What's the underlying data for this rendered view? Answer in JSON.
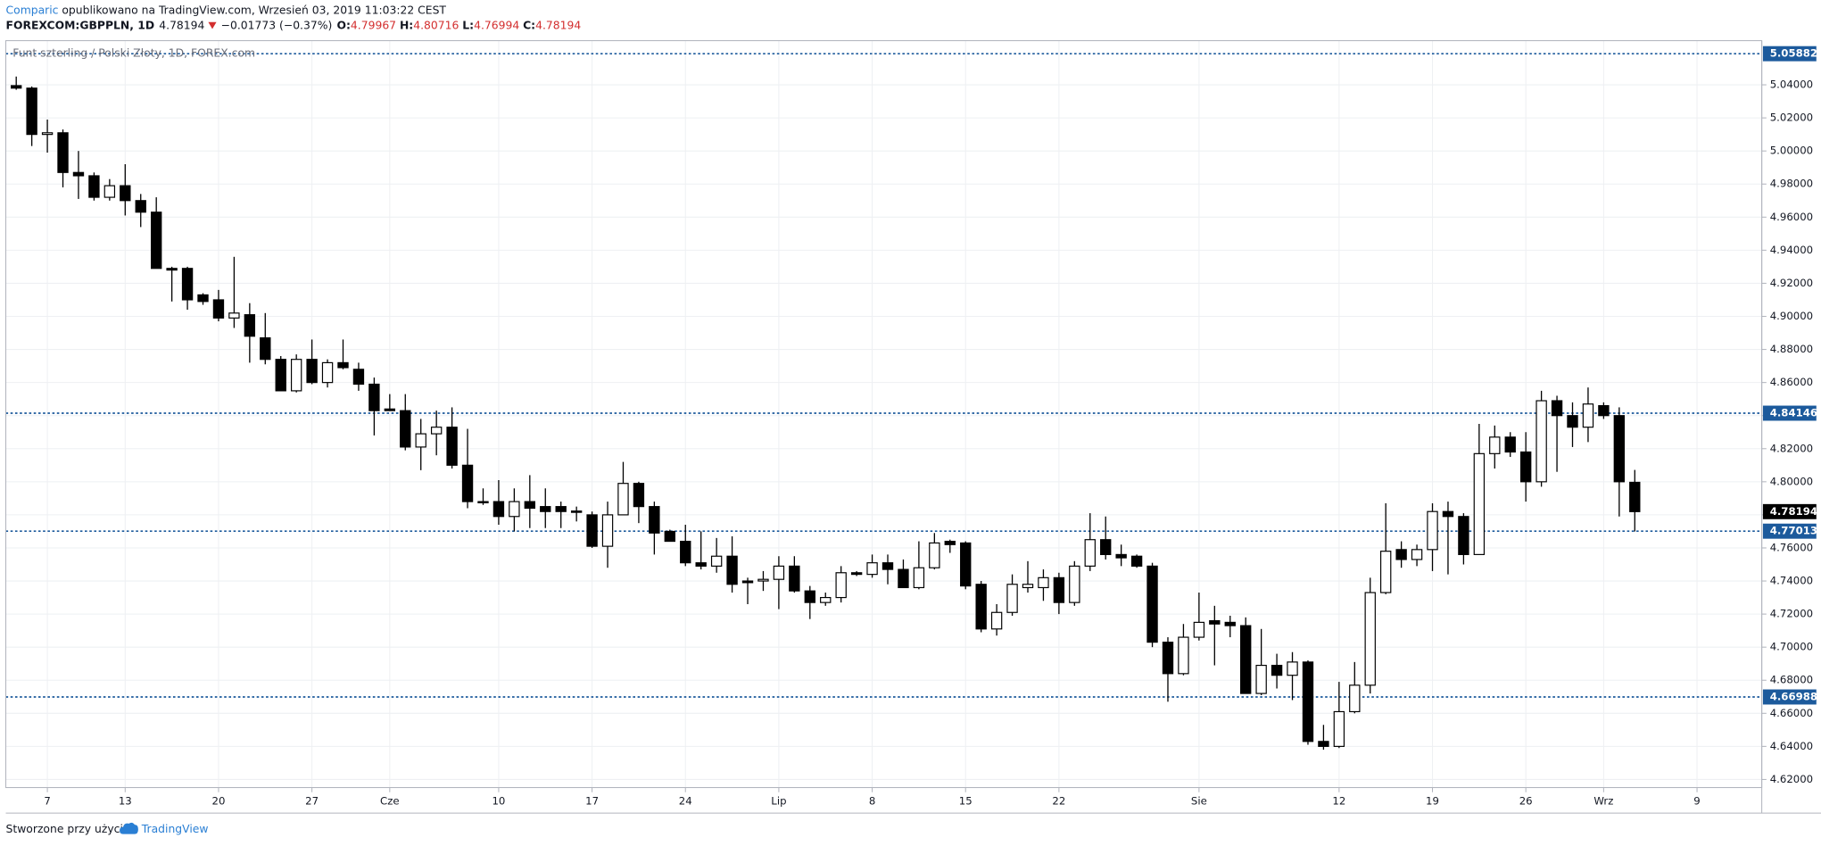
{
  "header": {
    "publisher": "Comparic",
    "published": "opublikowano na TradingView.com, Wrzesień 03, 2019 11:03:22 CEST",
    "symbol": "FOREXCOM:GBPPLN, 1D",
    "change": "−0.01773 (−0.37%)",
    "o": "O:",
    "h": "H:",
    "l": "L:",
    "c": "C:"
  },
  "chart_data": {
    "type": "candlestick",
    "title": "Funt szterling / Polski Złoty, 1D, FOREX.com",
    "up_color": "#ffffff",
    "down_color": "#000000",
    "outline_color": "#000000",
    "level_color": "#1c5a9c",
    "grid": true,
    "open": [
      5.0395,
      5.038,
      5.01,
      5.011,
      4.987,
      4.985,
      4.972,
      4.979,
      4.97,
      4.963,
      4.929,
      4.929,
      4.913,
      4.91,
      4.899,
      4.901,
      4.887,
      4.874,
      4.855,
      4.874,
      4.86,
      4.872,
      4.868,
      4.859,
      4.844,
      4.843,
      4.821,
      4.829,
      4.833,
      4.81,
      4.788,
      4.788,
      4.779,
      4.788,
      4.785,
      4.785,
      4.7823,
      4.78,
      4.761,
      4.78,
      4.799,
      4.785,
      4.77,
      4.764,
      4.751,
      4.749,
      4.755,
      4.74,
      4.74,
      4.741,
      4.749,
      4.734,
      4.727,
      4.73,
      4.745,
      4.744,
      4.751,
      4.747,
      4.736,
      4.748,
      4.764,
      4.763,
      4.738,
      4.711,
      4.721,
      4.736,
      4.736,
      4.742,
      4.727,
      4.749,
      4.765,
      4.756,
      4.755,
      4.749,
      4.703,
      4.684,
      4.706,
      4.716,
      4.715,
      4.713,
      4.672,
      4.689,
      4.683,
      4.691,
      4.643,
      4.64,
      4.661,
      4.677,
      4.733,
      4.759,
      4.753,
      4.759,
      4.782,
      4.779,
      4.756,
      4.817,
      4.827,
      4.818,
      4.8,
      4.849,
      4.84,
      4.833,
      4.846,
      4.84,
      4.79967
    ],
    "high": [
      5.045,
      5.039,
      5.019,
      5.013,
      5.0,
      4.987,
      4.983,
      4.992,
      4.974,
      4.972,
      4.93,
      4.93,
      4.914,
      4.916,
      4.936,
      4.908,
      4.902,
      4.876,
      4.877,
      4.886,
      4.874,
      4.886,
      4.872,
      4.863,
      4.853,
      4.853,
      4.838,
      4.843,
      4.845,
      4.832,
      4.796,
      4.801,
      4.796,
      4.804,
      4.796,
      4.788,
      4.785,
      4.782,
      4.788,
      4.812,
      4.8,
      4.788,
      4.771,
      4.774,
      4.77,
      4.766,
      4.767,
      4.742,
      4.746,
      4.755,
      4.755,
      4.737,
      4.733,
      4.749,
      4.746,
      4.756,
      4.756,
      4.753,
      4.764,
      4.769,
      4.765,
      4.764,
      4.74,
      4.726,
      4.744,
      4.752,
      4.747,
      4.745,
      4.752,
      4.781,
      4.779,
      4.762,
      4.756,
      4.751,
      4.706,
      4.714,
      4.733,
      4.725,
      4.719,
      4.718,
      4.711,
      4.696,
      4.697,
      4.692,
      4.653,
      4.679,
      4.691,
      4.742,
      4.787,
      4.764,
      4.762,
      4.787,
      4.788,
      4.781,
      4.835,
      4.834,
      4.83,
      4.83,
      4.855,
      4.852,
      4.848,
      4.857,
      4.848,
      4.845,
      4.80716
    ],
    "low": [
      5.037,
      5.003,
      4.999,
      4.978,
      4.971,
      4.97,
      4.97,
      4.961,
      4.954,
      4.929,
      4.909,
      4.904,
      4.907,
      4.897,
      4.893,
      4.872,
      4.871,
      4.855,
      4.854,
      4.859,
      4.857,
      4.868,
      4.855,
      4.828,
      4.843,
      4.819,
      4.807,
      4.816,
      4.808,
      4.784,
      4.786,
      4.774,
      4.77,
      4.772,
      4.772,
      4.772,
      4.776,
      4.76,
      4.748,
      4.78,
      4.775,
      4.756,
      4.764,
      4.749,
      4.747,
      4.745,
      4.733,
      4.726,
      4.734,
      4.723,
      4.733,
      4.717,
      4.725,
      4.727,
      4.743,
      4.742,
      4.738,
      4.736,
      4.735,
      4.747,
      4.757,
      4.735,
      4.709,
      4.707,
      4.719,
      4.733,
      4.728,
      4.72,
      4.725,
      4.746,
      4.753,
      4.749,
      4.748,
      4.7,
      4.667,
      4.683,
      4.704,
      4.689,
      4.706,
      4.672,
      4.671,
      4.675,
      4.668,
      4.641,
      4.638,
      4.639,
      4.66,
      4.672,
      4.732,
      4.748,
      4.749,
      4.746,
      4.744,
      4.75,
      4.756,
      4.808,
      4.815,
      4.788,
      4.797,
      4.806,
      4.821,
      4.824,
      4.838,
      4.779,
      4.76994
    ],
    "close": [
      5.038,
      5.01,
      5.011,
      4.987,
      4.985,
      4.972,
      4.979,
      4.97,
      4.963,
      4.929,
      4.928,
      4.91,
      4.909,
      4.899,
      4.902,
      4.888,
      4.874,
      4.855,
      4.874,
      4.86,
      4.872,
      4.869,
      4.859,
      4.843,
      4.843,
      4.821,
      4.829,
      4.833,
      4.81,
      4.788,
      4.7878,
      4.779,
      4.788,
      4.784,
      4.782,
      4.782,
      4.7815,
      4.761,
      4.78,
      4.799,
      4.785,
      4.769,
      4.764,
      4.751,
      4.749,
      4.755,
      4.738,
      4.739,
      4.741,
      4.749,
      4.734,
      4.727,
      4.73,
      4.745,
      4.744,
      4.751,
      4.747,
      4.736,
      4.748,
      4.763,
      4.762,
      4.737,
      4.711,
      4.721,
      4.738,
      4.738,
      4.742,
      4.727,
      4.749,
      4.765,
      4.756,
      4.754,
      4.749,
      4.703,
      4.684,
      4.706,
      4.715,
      4.714,
      4.713,
      4.672,
      4.689,
      4.683,
      4.691,
      4.643,
      4.64,
      4.661,
      4.677,
      4.733,
      4.758,
      4.753,
      4.759,
      4.782,
      4.779,
      4.756,
      4.817,
      4.827,
      4.818,
      4.8,
      4.849,
      4.84,
      4.833,
      4.847,
      4.84,
      4.8,
      4.78194
    ],
    "levels": [
      5.05882,
      4.84146,
      4.77013,
      4.66988
    ],
    "xlim": [
      -0.67,
      112.16
    ],
    "xticks": [
      {
        "value": 2,
        "label": "7"
      },
      {
        "value": 7,
        "label": "13"
      },
      {
        "value": 13,
        "label": "20"
      },
      {
        "value": 19,
        "label": "27"
      },
      {
        "value": 24,
        "label": "Cze"
      },
      {
        "value": 31,
        "label": "10"
      },
      {
        "value": 37,
        "label": "17"
      },
      {
        "value": 43,
        "label": "24"
      },
      {
        "value": 49,
        "label": "Lip"
      },
      {
        "value": 55,
        "label": "8"
      },
      {
        "value": 61,
        "label": "15"
      },
      {
        "value": 67,
        "label": "22"
      },
      {
        "value": 76,
        "label": "Sie"
      },
      {
        "value": 85,
        "label": "12"
      },
      {
        "value": 91,
        "label": "19"
      },
      {
        "value": 97,
        "label": "26"
      },
      {
        "value": 102,
        "label": "Wrz"
      },
      {
        "value": 108,
        "label": "9"
      }
    ],
    "ylim": [
      4.6151,
      5.0667
    ],
    "yticks": [
      {
        "value": 4.62,
        "label": "4.62000"
      },
      {
        "value": 4.64,
        "label": "4.64000"
      },
      {
        "value": 4.66,
        "label": "4.66000"
      },
      {
        "value": 4.68,
        "label": "4.68000"
      },
      {
        "value": 4.7,
        "label": "4.70000"
      },
      {
        "value": 4.72,
        "label": "4.72000"
      },
      {
        "value": 4.74,
        "label": "4.74000"
      },
      {
        "value": 4.76,
        "label": "4.76000"
      },
      {
        "value": 4.78,
        "label": "4.78000"
      },
      {
        "value": 4.8,
        "label": "4.80000"
      },
      {
        "value": 4.82,
        "label": "4.82000"
      },
      {
        "value": 4.84,
        "label": "4.84000"
      },
      {
        "value": 4.86,
        "label": "4.86000"
      },
      {
        "value": 4.88,
        "label": "4.88000"
      },
      {
        "value": 4.9,
        "label": "4.90000"
      },
      {
        "value": 4.92,
        "label": "4.92000"
      },
      {
        "value": 4.94,
        "label": "4.94000"
      },
      {
        "value": 4.96,
        "label": "4.96000"
      },
      {
        "value": 4.98,
        "label": "4.98000"
      },
      {
        "value": 5.0,
        "label": "5.00000"
      },
      {
        "value": 5.02,
        "label": "5.02000"
      },
      {
        "value": 5.04,
        "label": "5.04000"
      }
    ]
  },
  "footer": {
    "made_with": "Stworzone przy użyciu",
    "brand": "TradingView"
  }
}
